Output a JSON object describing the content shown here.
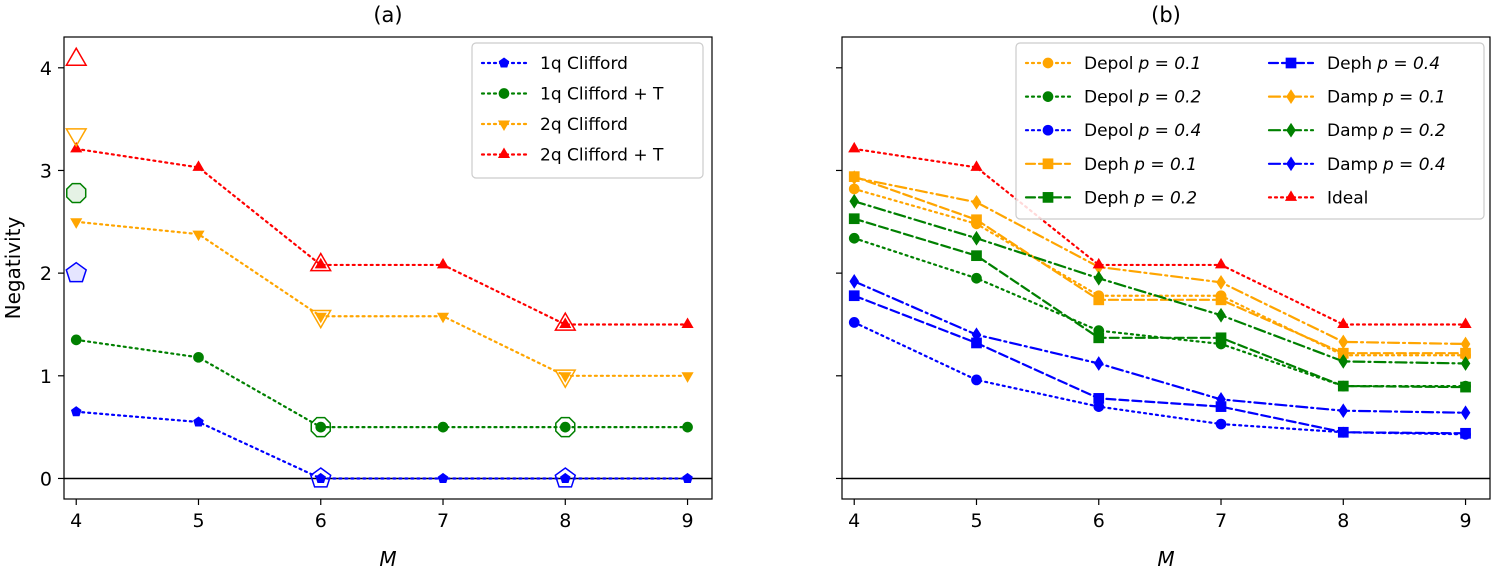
{
  "chart_data": [
    {
      "type": "line",
      "title": "(a)",
      "xlabel": "M",
      "ylabel": "Negativity",
      "x": [
        4,
        5,
        6,
        7,
        8,
        9
      ],
      "xlim": [
        3.9,
        9.2
      ],
      "ylim": [
        -0.2,
        4.3
      ],
      "xticks": [
        4,
        5,
        6,
        7,
        8,
        9
      ],
      "yticks": [
        0,
        1,
        2,
        3,
        4
      ],
      "hline_y": 0,
      "legend_position": "top-right",
      "series": [
        {
          "name": "1q Clifford",
          "color": "#0000ff",
          "marker": "pentagon",
          "dash": "dotted",
          "values": [
            0.65,
            0.55,
            0.0,
            0.0,
            0.0,
            0.0
          ]
        },
        {
          "name": "1q Clifford + T",
          "color": "#008000",
          "marker": "circle",
          "dash": "dotted",
          "values": [
            1.35,
            1.18,
            0.5,
            0.5,
            0.5,
            0.5
          ]
        },
        {
          "name": "2q Clifford",
          "color": "#ffa500",
          "marker": "tri_down",
          "dash": "dotted",
          "values": [
            2.5,
            2.38,
            1.58,
            1.58,
            1.0,
            1.0
          ]
        },
        {
          "name": "2q Clifford + T",
          "color": "#ff0000",
          "marker": "tri_up",
          "dash": "dotted",
          "values": [
            3.21,
            3.03,
            2.08,
            2.08,
            1.5,
            1.5
          ]
        }
      ],
      "reference_points": [
        {
          "series": "1q Clifford",
          "x": 4,
          "y": 2.0,
          "marker": "pentagon",
          "filled": true,
          "color": "#0000ff"
        },
        {
          "series": "1q Clifford",
          "x": 6,
          "y": 0.0,
          "marker": "pentagon",
          "filled": false,
          "color": "#0000ff"
        },
        {
          "series": "1q Clifford",
          "x": 8,
          "y": 0.0,
          "marker": "pentagon",
          "filled": false,
          "color": "#0000ff"
        },
        {
          "series": "1q Clifford + T",
          "x": 4,
          "y": 2.78,
          "marker": "octagon",
          "filled": true,
          "color": "#008000"
        },
        {
          "series": "1q Clifford + T",
          "x": 6,
          "y": 0.5,
          "marker": "octagon",
          "filled": false,
          "color": "#008000"
        },
        {
          "series": "1q Clifford + T",
          "x": 8,
          "y": 0.5,
          "marker": "octagon",
          "filled": false,
          "color": "#008000"
        },
        {
          "series": "2q Clifford",
          "x": 4,
          "y": 3.35,
          "marker": "tri_down",
          "filled": false,
          "color": "#ffa500"
        },
        {
          "series": "2q Clifford",
          "x": 6,
          "y": 1.58,
          "marker": "tri_down",
          "filled": false,
          "color": "#ffa500"
        },
        {
          "series": "2q Clifford",
          "x": 8,
          "y": 1.0,
          "marker": "tri_down",
          "filled": false,
          "color": "#ffa500"
        },
        {
          "series": "2q Clifford + T",
          "x": 4,
          "y": 4.08,
          "marker": "tri_up",
          "filled": false,
          "color": "#ff0000"
        },
        {
          "series": "2q Clifford + T",
          "x": 6,
          "y": 2.08,
          "marker": "tri_up",
          "filled": false,
          "color": "#ff0000"
        },
        {
          "series": "2q Clifford + T",
          "x": 8,
          "y": 1.5,
          "marker": "tri_up",
          "filled": false,
          "color": "#ff0000"
        }
      ],
      "legend_labels": [
        {
          "text": "1q Clifford",
          "math": ""
        },
        {
          "text": "1q Clifford + T",
          "math": ""
        },
        {
          "text": "2q Clifford",
          "math": ""
        },
        {
          "text": "2q Clifford + T",
          "math": ""
        }
      ]
    },
    {
      "type": "line",
      "title": "(b)",
      "xlabel": "M",
      "ylabel": "",
      "x": [
        4,
        5,
        6,
        7,
        8,
        9
      ],
      "xlim": [
        3.9,
        9.2
      ],
      "ylim": [
        -0.2,
        4.3
      ],
      "xticks": [
        4,
        5,
        6,
        7,
        8,
        9
      ],
      "yticks": [
        0,
        1,
        2,
        3,
        4
      ],
      "hline_y": 0,
      "legend_position": "top-right",
      "legend_columns": 2,
      "series": [
        {
          "name": "Depol p = 0.1",
          "color": "#ffa500",
          "marker": "circle",
          "dash": "dotted",
          "values": [
            2.82,
            2.48,
            1.78,
            1.78,
            1.2,
            1.2
          ]
        },
        {
          "name": "Depol p = 0.2",
          "color": "#008000",
          "marker": "circle",
          "dash": "dotted",
          "values": [
            2.34,
            1.95,
            1.44,
            1.31,
            0.9,
            0.9
          ]
        },
        {
          "name": "Depol p = 0.4",
          "color": "#0000ff",
          "marker": "circle",
          "dash": "dotted",
          "values": [
            1.52,
            0.96,
            0.7,
            0.53,
            0.45,
            0.43
          ]
        },
        {
          "name": "Deph p = 0.1",
          "color": "#ffa500",
          "marker": "square",
          "dash": "dashed",
          "values": [
            2.94,
            2.52,
            1.74,
            1.74,
            1.22,
            1.22
          ]
        },
        {
          "name": "Deph p = 0.2",
          "color": "#008000",
          "marker": "square",
          "dash": "dashed",
          "values": [
            2.53,
            2.17,
            1.37,
            1.37,
            0.9,
            0.89
          ]
        },
        {
          "name": "Deph p = 0.4",
          "color": "#0000ff",
          "marker": "square",
          "dash": "dashed",
          "values": [
            1.78,
            1.32,
            0.78,
            0.7,
            0.45,
            0.44
          ]
        },
        {
          "name": "Damp p = 0.1",
          "color": "#ffa500",
          "marker": "diamond",
          "dash": "dashdot",
          "values": [
            2.93,
            2.69,
            2.06,
            1.91,
            1.33,
            1.31
          ]
        },
        {
          "name": "Damp p = 0.2",
          "color": "#008000",
          "marker": "diamond",
          "dash": "dashdot",
          "values": [
            2.7,
            2.34,
            1.95,
            1.59,
            1.14,
            1.12
          ]
        },
        {
          "name": "Damp p = 0.4",
          "color": "#0000ff",
          "marker": "diamond",
          "dash": "dashdot",
          "values": [
            1.92,
            1.4,
            1.12,
            0.77,
            0.66,
            0.64
          ]
        },
        {
          "name": "Ideal",
          "color": "#ff0000",
          "marker": "tri_up",
          "dash": "dotted",
          "values": [
            3.21,
            3.03,
            2.08,
            2.08,
            1.5,
            1.5
          ]
        }
      ],
      "legend_labels": [
        {
          "text": "Depol",
          "math": "p = 0.1"
        },
        {
          "text": "Depol",
          "math": "p = 0.2"
        },
        {
          "text": "Depol",
          "math": "p = 0.4"
        },
        {
          "text": "Deph",
          "math": "p = 0.1"
        },
        {
          "text": "Deph",
          "math": "p = 0.2"
        },
        {
          "text": "Deph",
          "math": "p = 0.4"
        },
        {
          "text": "Damp",
          "math": "p = 0.1"
        },
        {
          "text": "Damp",
          "math": "p = 0.2"
        },
        {
          "text": "Damp",
          "math": "p = 0.4"
        },
        {
          "text": "Ideal",
          "math": ""
        }
      ]
    }
  ]
}
